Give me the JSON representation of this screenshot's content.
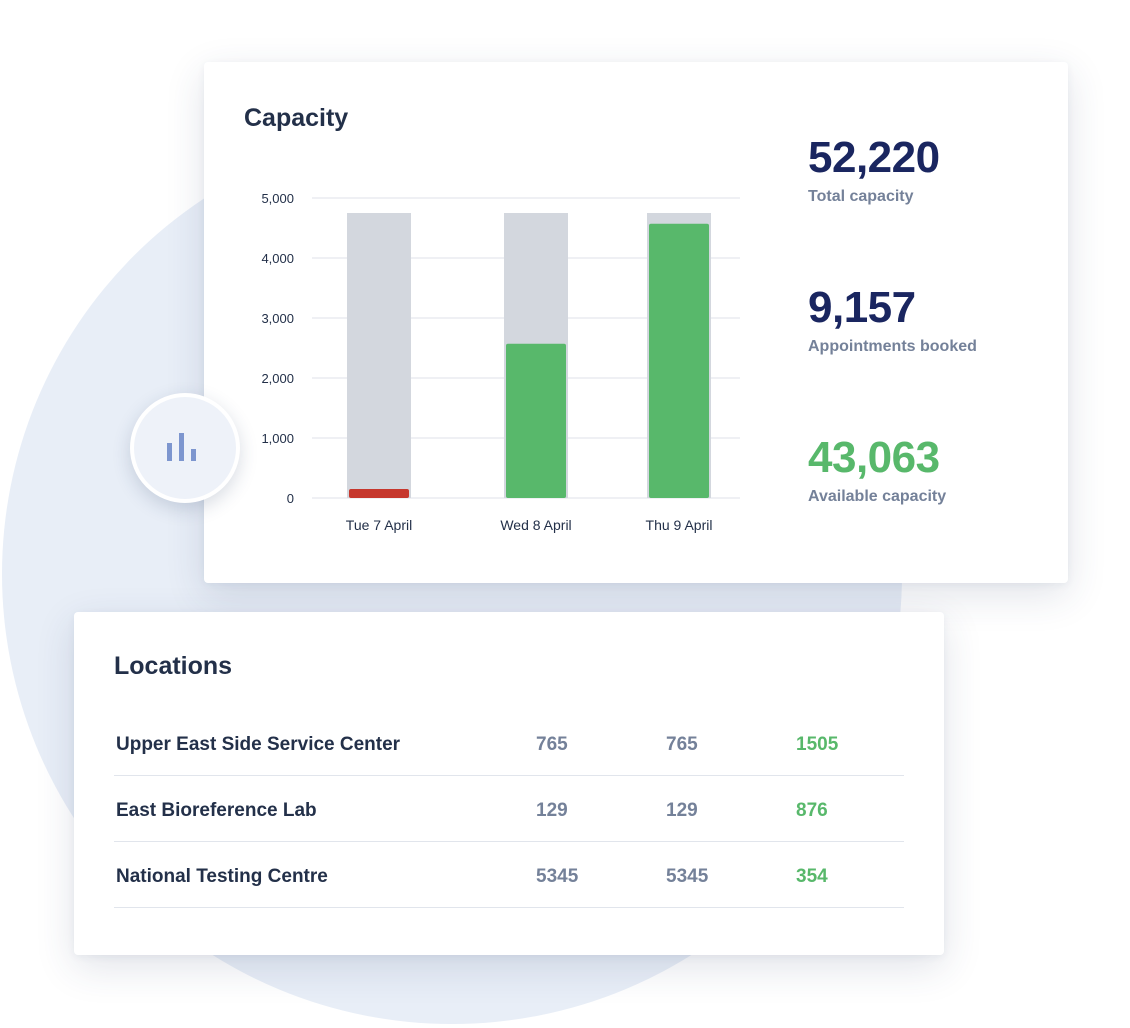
{
  "capacity": {
    "title": "Capacity",
    "stats": {
      "total_value": "52,220",
      "total_label": "Total capacity",
      "booked_value": "9,157",
      "booked_label": "Appointments booked",
      "available_value": "43,063",
      "available_label": "Available capacity"
    }
  },
  "chart_data": {
    "type": "bar",
    "title": "Capacity",
    "categories": [
      "Tue 7 April",
      "Wed 8 April",
      "Thu 9 April"
    ],
    "ylim": [
      0,
      5000
    ],
    "yticks": [
      "0",
      "1,000",
      "2,000",
      "3,000",
      "4,000",
      "5,000"
    ],
    "grid": true,
    "series": [
      {
        "values": [
          4750,
          4750,
          4750
        ],
        "color": "#d3d7de"
      },
      {
        "values": [
          150,
          2570,
          4570
        ],
        "colors": [
          "#c6372d",
          "#58b86b",
          "#58b86b"
        ]
      }
    ]
  },
  "locations": {
    "title": "Locations",
    "rows": [
      {
        "name": "Upper East Side Service Center",
        "c1": "765",
        "c2": "765",
        "c3": "1505"
      },
      {
        "name": "East Bioreference Lab",
        "c1": "129",
        "c2": "129",
        "c3": "876"
      },
      {
        "name": "National Testing Centre",
        "c1": "5345",
        "c2": "5345",
        "c3": "354"
      }
    ]
  },
  "colors": {
    "accent_green": "#58b86b",
    "alert_red": "#c6372d",
    "navy": "#1a2660",
    "muted": "#748199"
  },
  "icons": {
    "badge": "bar-chart-icon"
  }
}
